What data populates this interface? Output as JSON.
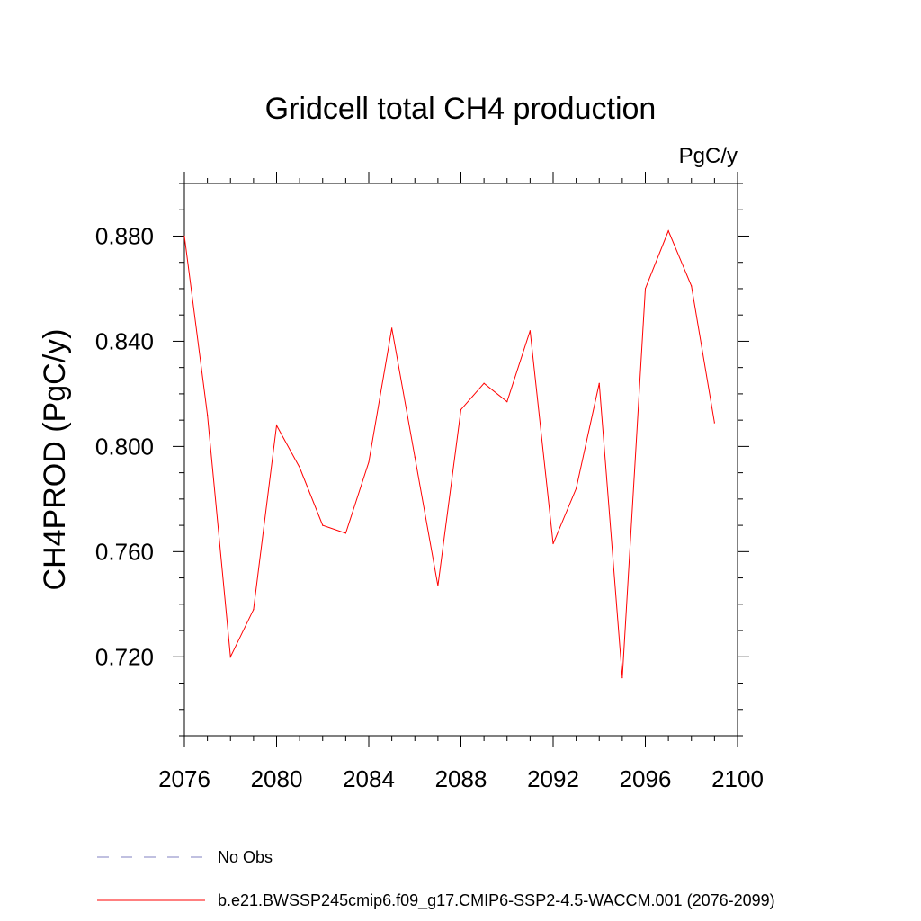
{
  "chart_data": {
    "type": "line",
    "title": "Gridcell total CH4 production",
    "units_label": "PgC/y",
    "ylabel": "CH4PROD  (PgC/y)",
    "xlabel": "",
    "xlim": [
      2076,
      2100
    ],
    "ylim": [
      0.69,
      0.9
    ],
    "x_ticks": [
      2076,
      2080,
      2084,
      2088,
      2092,
      2096,
      2100
    ],
    "y_ticks": [
      0.72,
      0.76,
      0.8,
      0.84,
      0.88
    ],
    "y_tick_labels": [
      "0.720",
      "0.760",
      "0.800",
      "0.840",
      "0.880"
    ],
    "x_minor_step": 1,
    "y_minor_step": 0.01,
    "grid": false,
    "legend_position": "bottom",
    "series": [
      {
        "name": "b.e21.BWSSP245cmip6.f09_g17.CMIP6-SSP2-4.5-WACCM.001 (2076-2099)",
        "color": "#ff0000",
        "style": "solid",
        "x": [
          2076,
          2077,
          2078,
          2079,
          2080,
          2081,
          2082,
          2083,
          2084,
          2085,
          2086,
          2087,
          2088,
          2089,
          2090,
          2091,
          2092,
          2093,
          2094,
          2095,
          2096,
          2097,
          2098,
          2099
        ],
        "values": [
          0.88,
          0.812,
          0.72,
          0.738,
          0.808,
          0.792,
          0.77,
          0.767,
          0.794,
          0.845,
          0.796,
          0.747,
          0.814,
          0.824,
          0.817,
          0.844,
          0.763,
          0.784,
          0.824,
          0.712,
          0.86,
          0.882,
          0.861,
          0.809
        ]
      }
    ],
    "legend": [
      {
        "label": "No Obs",
        "color": "#8080c0",
        "style": "dashed"
      },
      {
        "label": "b.e21.BWSSP245cmip6.f09_g17.CMIP6-SSP2-4.5-WACCM.001 (2076-2099)",
        "color": "#ff0000",
        "style": "solid"
      }
    ]
  }
}
